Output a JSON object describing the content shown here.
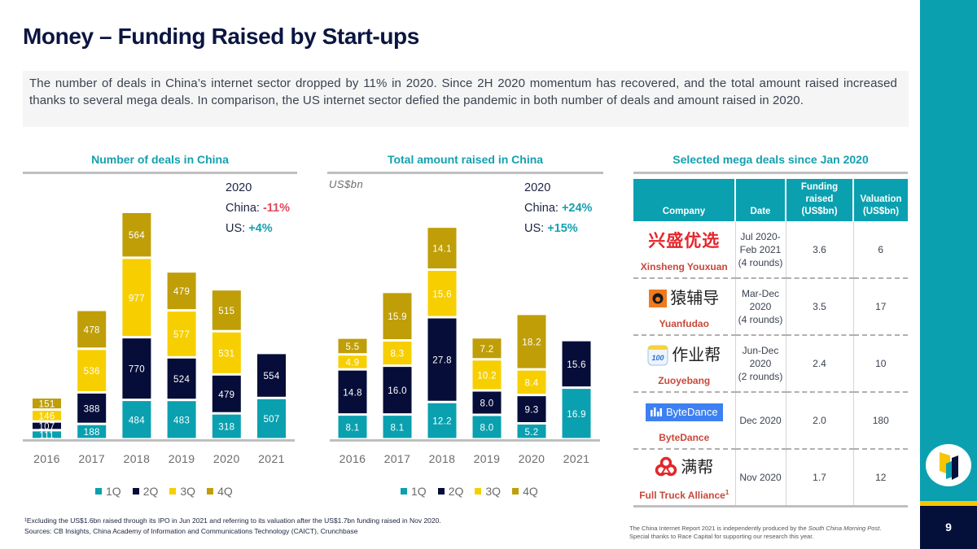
{
  "header": {
    "title": "Money – Funding Raised by Start-ups"
  },
  "summary": "The number of deals in China’s internet sector dropped by 11% in 2020. Since 2H 2020 momentum has recovered, and the total amount raised increased thanks to several mega deals. In comparison, the US internet sector defied the pandemic in both number of deals and amount raised in 2020.",
  "chart_data": [
    {
      "type": "bar",
      "stacked": true,
      "title": "Number of deals in China",
      "xlabel": "",
      "ylabel": "",
      "unit_label": "",
      "ylim": [
        0,
        3300
      ],
      "grid": false,
      "decimals": 0,
      "categories": [
        "2016",
        "2017",
        "2018",
        "2019",
        "2020",
        "2021"
      ],
      "series": [
        {
          "name": "1Q",
          "color": "#0aa0b0",
          "values": [
            111,
            188,
            484,
            483,
            318,
            507
          ]
        },
        {
          "name": "2Q",
          "color": "#050d38",
          "values": [
            107,
            388,
            770,
            524,
            479,
            554
          ]
        },
        {
          "name": "3Q",
          "color": "#f7cf00",
          "values": [
            146,
            536,
            977,
            577,
            531,
            null
          ]
        },
        {
          "name": "4Q",
          "color": "#bf9e08",
          "values": [
            151,
            478,
            564,
            479,
            515,
            null
          ]
        }
      ],
      "legend": "bottom",
      "annotation": {
        "year": "2020",
        "china_label": "China: ",
        "china_value": "-11%",
        "us_label": "US: ",
        "us_value": "+4%"
      }
    },
    {
      "type": "bar",
      "stacked": true,
      "title": "Total amount raised in China",
      "xlabel": "",
      "ylabel": "",
      "unit_label": "US$bn",
      "ylim": [
        0,
        88
      ],
      "grid": false,
      "decimals": 1,
      "categories": [
        "2016",
        "2017",
        "2018",
        "2019",
        "2020",
        "2021"
      ],
      "series": [
        {
          "name": "1Q",
          "color": "#0aa0b0",
          "values": [
            8.1,
            8.1,
            12.2,
            8.0,
            5.2,
            16.9
          ]
        },
        {
          "name": "2Q",
          "color": "#050d38",
          "values": [
            14.8,
            16.0,
            27.8,
            8.0,
            9.3,
            15.6
          ]
        },
        {
          "name": "3Q",
          "color": "#f7cf00",
          "values": [
            4.9,
            8.3,
            15.6,
            10.2,
            8.4,
            null
          ]
        },
        {
          "name": "4Q",
          "color": "#bf9e08",
          "values": [
            5.5,
            15.9,
            14.1,
            7.2,
            18.2,
            null
          ]
        }
      ],
      "legend": "bottom",
      "annotation": {
        "year": "2020",
        "china_label": "China: ",
        "china_value": "+24%",
        "us_label": "US: ",
        "us_value": "+15%"
      }
    }
  ],
  "table": {
    "title": "Selected mega deals since Jan 2020",
    "headers": [
      "Company",
      "Date",
      "Funding raised (US$bn)",
      "Valuation (US$bn)"
    ],
    "header_lines": {
      "funding": [
        "Funding",
        "raised",
        "(US$bn)"
      ],
      "valuation": [
        "Valuation",
        "(US$bn)"
      ]
    },
    "rows": [
      {
        "company": "Xinsheng Youxuan",
        "logo_text": "兴盛优选",
        "logo_icon": "xinsheng-logo",
        "date": [
          "Jul 2020-",
          "Feb 2021",
          "(4 rounds)"
        ],
        "funding": "3.6",
        "valuation": "6"
      },
      {
        "company": "Yuanfudao",
        "logo_text": "猿辅导",
        "logo_icon": "yuanfudao-logo",
        "date": [
          "Mar-Dec",
          "2020",
          "(4 rounds)"
        ],
        "funding": "3.5",
        "valuation": "17"
      },
      {
        "company": "Zuoyebang",
        "logo_text": "作业帮",
        "logo_badge": "100",
        "logo_icon": "zuoyebang-logo",
        "date": [
          "Jun-Dec",
          "2020",
          "(2 rounds)"
        ],
        "funding": "2.4",
        "valuation": "10"
      },
      {
        "company": "ByteDance",
        "logo_text": "ByteDance",
        "logo_icon": "bytedance-logo",
        "date": [
          "Dec 2020"
        ],
        "funding": "2.0",
        "valuation": "180"
      },
      {
        "company": "Full Truck Alliance",
        "footnote_mark": "1",
        "logo_text": "满帮",
        "logo_icon": "full-truck-alliance-logo",
        "date": [
          "Nov 2020"
        ],
        "funding": "1.7",
        "valuation": "12"
      }
    ]
  },
  "footnotes": [
    "¹Excluding the US$1.6bn raised through its IPO in Jun 2021 and referring to its valuation after the US$1.7bn funding raised in Nov 2020.",
    "Sources: CB Insights, China Academy of Information and Communications Technology (CAICT), Crunchbase"
  ],
  "footer": {
    "credit_prefix": "The China Internet Report 2021  is independently produced by the ",
    "credit_publication": "South China Morning Post",
    "credit_suffix": ".",
    "thanks": "Special thanks to Race Capital for supporting our research this year."
  },
  "page_number": "9",
  "colors": {
    "accent": "#0aa0b0",
    "navy": "#050d38",
    "yellow": "#f7cf00",
    "olive": "#bf9e08",
    "negative": "#e0485a",
    "company": "#c9483a"
  }
}
